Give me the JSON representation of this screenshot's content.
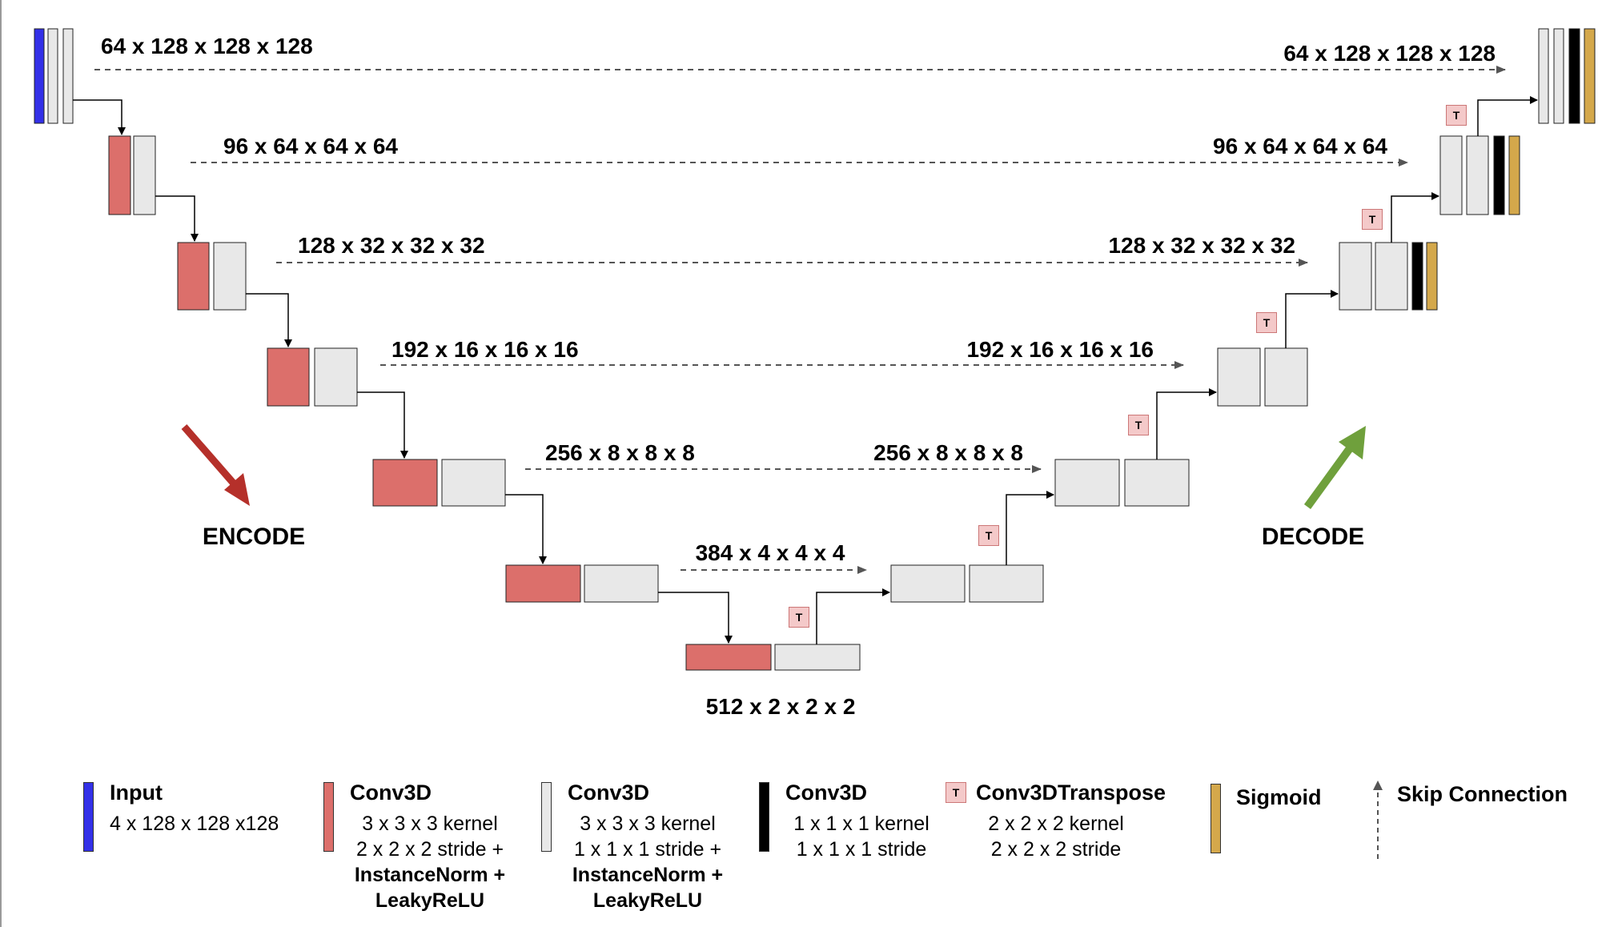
{
  "colors": {
    "input": "#3330e8",
    "conv_stride": "#dc6f6b",
    "conv_plain": "#e8e8e8",
    "conv_1x1": "#000000",
    "transpose": "#f4c9c9",
    "sigmoid": "#d4a84b",
    "encode_arrow": "#b5302a",
    "decode_arrow": "#6fa03c",
    "skip": "#555555"
  },
  "levels": [
    {
      "left": "64 x 128 x 128 x 128",
      "right": "64 x 128 x 128 x 128"
    },
    {
      "left": "96 x 64 x 64 x 64",
      "right": "96 x 64 x 64 x 64"
    },
    {
      "left": "128 x 32 x 32 x 32",
      "right": "128 x 32 x 32 x 32"
    },
    {
      "left": "192 x 16 x 16 x 16",
      "right": "192 x 16 x 16 x 16"
    },
    {
      "left": "256 x 8 x 8 x 8",
      "right": "256 x 8 x 8 x 8"
    },
    {
      "left": "384 x 4 x 4 x 4"
    }
  ],
  "bottleneck_label": "512 x 2 x 2 x 2",
  "encode_label": "ENCODE",
  "decode_label": "DECODE",
  "transpose_badge": "T",
  "legend": {
    "input": {
      "title": "Input",
      "lines": [
        "4 x 128 x 128 x128"
      ]
    },
    "conv_stride": {
      "title": "Conv3D",
      "lines": [
        "3 x 3 x 3 kernel",
        "2 x 2 x 2 stride +",
        "InstanceNorm +",
        "LeakyReLU"
      ]
    },
    "conv_plain": {
      "title": "Conv3D",
      "lines": [
        "3 x 3 x 3 kernel",
        "1 x 1 x 1 stride +",
        "InstanceNorm +",
        "LeakyReLU"
      ]
    },
    "conv_1x1": {
      "title": "Conv3D",
      "lines": [
        "1 x 1 x 1 kernel",
        "1 x 1 x 1 stride"
      ]
    },
    "transpose": {
      "title": "Conv3DTranspose",
      "lines": [
        "2 x 2 x 2 kernel",
        "2 x 2 x 2 stride"
      ]
    },
    "sigmoid": {
      "title": "Sigmoid"
    },
    "skip": {
      "title": "Skip Connection"
    }
  }
}
